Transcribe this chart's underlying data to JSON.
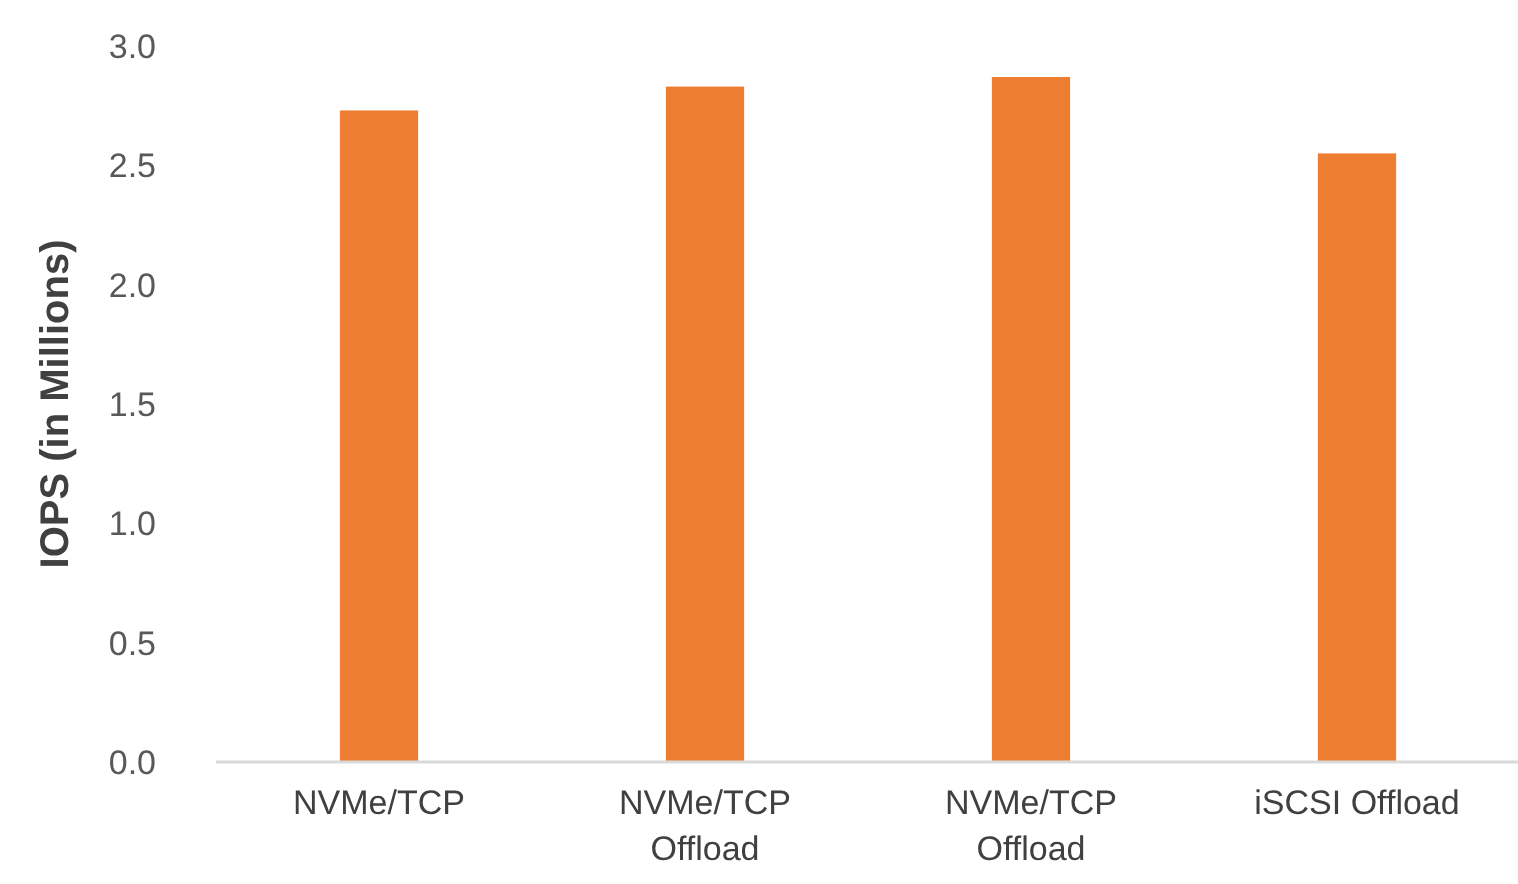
{
  "chart_data": {
    "type": "bar",
    "ylabel": "IOPS (in Millions)",
    "categories": [
      "NVMe/TCP",
      "NVMe/TCP Offload",
      "NVMe/TCP Offload",
      "iSCSI Offload"
    ],
    "values": [
      2.73,
      2.83,
      2.87,
      2.55
    ],
    "color": "#ed7d31",
    "ylim": [
      0,
      3
    ],
    "yticks": [
      {
        "value": 0,
        "label": "0.0"
      },
      {
        "value": 0.5,
        "label": "0.5"
      },
      {
        "value": 1,
        "label": "1.0"
      },
      {
        "value": 1.5,
        "label": "1.5"
      },
      {
        "value": 2,
        "label": "2.0"
      },
      {
        "value": 2.5,
        "label": "2.5"
      },
      {
        "value": 3,
        "label": "3.0"
      }
    ],
    "grid": false
  }
}
